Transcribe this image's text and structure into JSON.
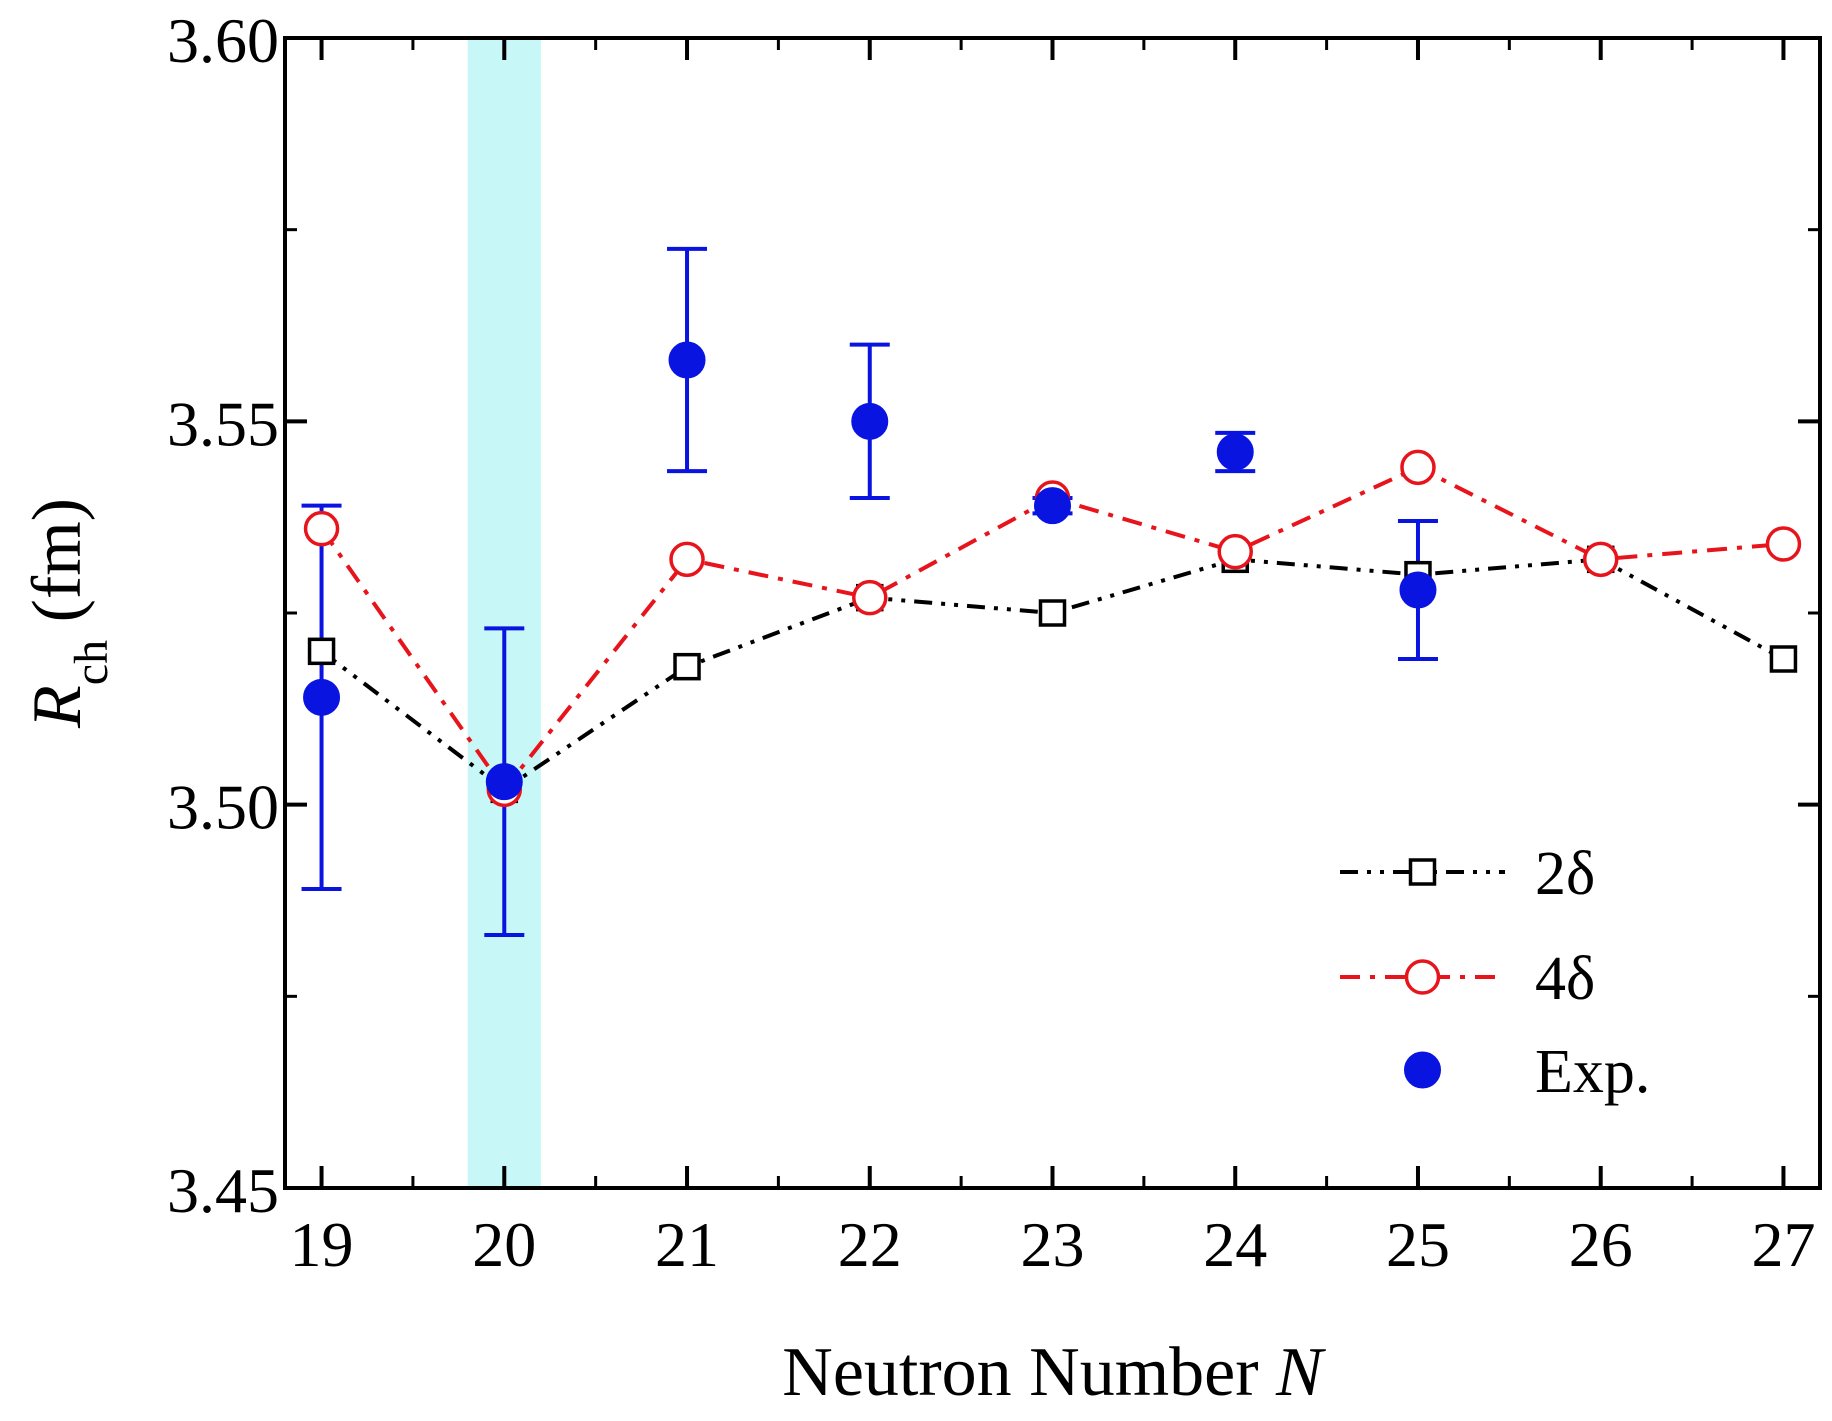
{
  "chart_data": {
    "type": "scatter",
    "xlabel": {
      "main": "Neutron Number ",
      "var": "N"
    },
    "ylabel": {
      "var": "R",
      "sub": "ch",
      "unit": " (fm)"
    },
    "xlim": [
      18.8,
      27.2
    ],
    "ylim": [
      3.45,
      3.6
    ],
    "x_ticks": [
      "19",
      "20",
      "21",
      "22",
      "23",
      "24",
      "25",
      "26",
      "27"
    ],
    "y_ticks": [
      "3.45",
      "3.50",
      "3.55",
      "3.60"
    ],
    "shaded_band": {
      "x": [
        19.8,
        20.2
      ],
      "color": "#c8f7f7"
    },
    "series": [
      {
        "name": "2δ",
        "marker": "open-square",
        "line": "dash-dot-dot",
        "color": "#000000",
        "x": [
          19,
          20,
          21,
          22,
          23,
          24,
          25,
          26,
          27
        ],
        "y": [
          3.52,
          3.502,
          3.518,
          3.527,
          3.525,
          3.532,
          3.53,
          3.532,
          3.519
        ]
      },
      {
        "name": "4δ",
        "marker": "open-circle",
        "line": "dash-dot",
        "color": "#e8141b",
        "x": [
          19,
          20,
          21,
          22,
          23,
          24,
          25,
          26,
          27
        ],
        "y": [
          3.536,
          3.502,
          3.532,
          3.527,
          3.54,
          3.533,
          3.544,
          3.532,
          3.534
        ]
      },
      {
        "name": "Exp.",
        "marker": "filled-circle",
        "line": "none",
        "color": "#0a14e0",
        "x": [
          19,
          20,
          21,
          22,
          23,
          24,
          25
        ],
        "y": [
          3.514,
          3.503,
          3.558,
          3.55,
          3.539,
          3.546,
          3.528
        ],
        "err": [
          0.025,
          0.02,
          0.0145,
          0.01,
          0.001,
          0.0025,
          0.009
        ]
      }
    ],
    "legend": {
      "position": "bottom-right"
    },
    "grid": false
  }
}
